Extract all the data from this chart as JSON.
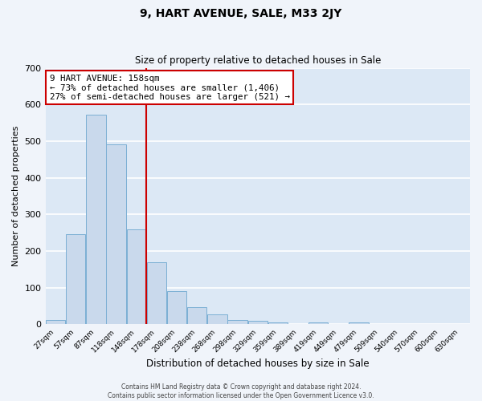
{
  "title": "9, HART AVENUE, SALE, M33 2JY",
  "subtitle": "Size of property relative to detached houses in Sale",
  "xlabel": "Distribution of detached houses by size in Sale",
  "ylabel": "Number of detached properties",
  "bin_labels": [
    "27sqm",
    "57sqm",
    "87sqm",
    "118sqm",
    "148sqm",
    "178sqm",
    "208sqm",
    "238sqm",
    "268sqm",
    "298sqm",
    "329sqm",
    "359sqm",
    "389sqm",
    "419sqm",
    "449sqm",
    "479sqm",
    "509sqm",
    "540sqm",
    "570sqm",
    "600sqm",
    "630sqm"
  ],
  "bar_heights": [
    13,
    247,
    573,
    491,
    260,
    170,
    90,
    47,
    27,
    13,
    10,
    5,
    0,
    5,
    0,
    5,
    0,
    0,
    0,
    0,
    0
  ],
  "bar_color": "#c9d9ec",
  "bar_edge_color": "#7bafd4",
  "fig_bg_color": "#f0f4fa",
  "ax_bg_color": "#dce8f5",
  "grid_color": "#ffffff",
  "vline_color": "#cc0000",
  "box_edge_color": "#cc0000",
  "ylim": [
    0,
    700
  ],
  "yticks": [
    0,
    100,
    200,
    300,
    400,
    500,
    600,
    700
  ],
  "annotation_title": "9 HART AVENUE: 158sqm",
  "annotation_line2": "← 73% of detached houses are smaller (1,406)",
  "annotation_line3": "27% of semi-detached houses are larger (521) →",
  "vline_x_bin_index": 4,
  "footer_line1": "Contains HM Land Registry data © Crown copyright and database right 2024.",
  "footer_line2": "Contains public sector information licensed under the Open Government Licence v3.0."
}
